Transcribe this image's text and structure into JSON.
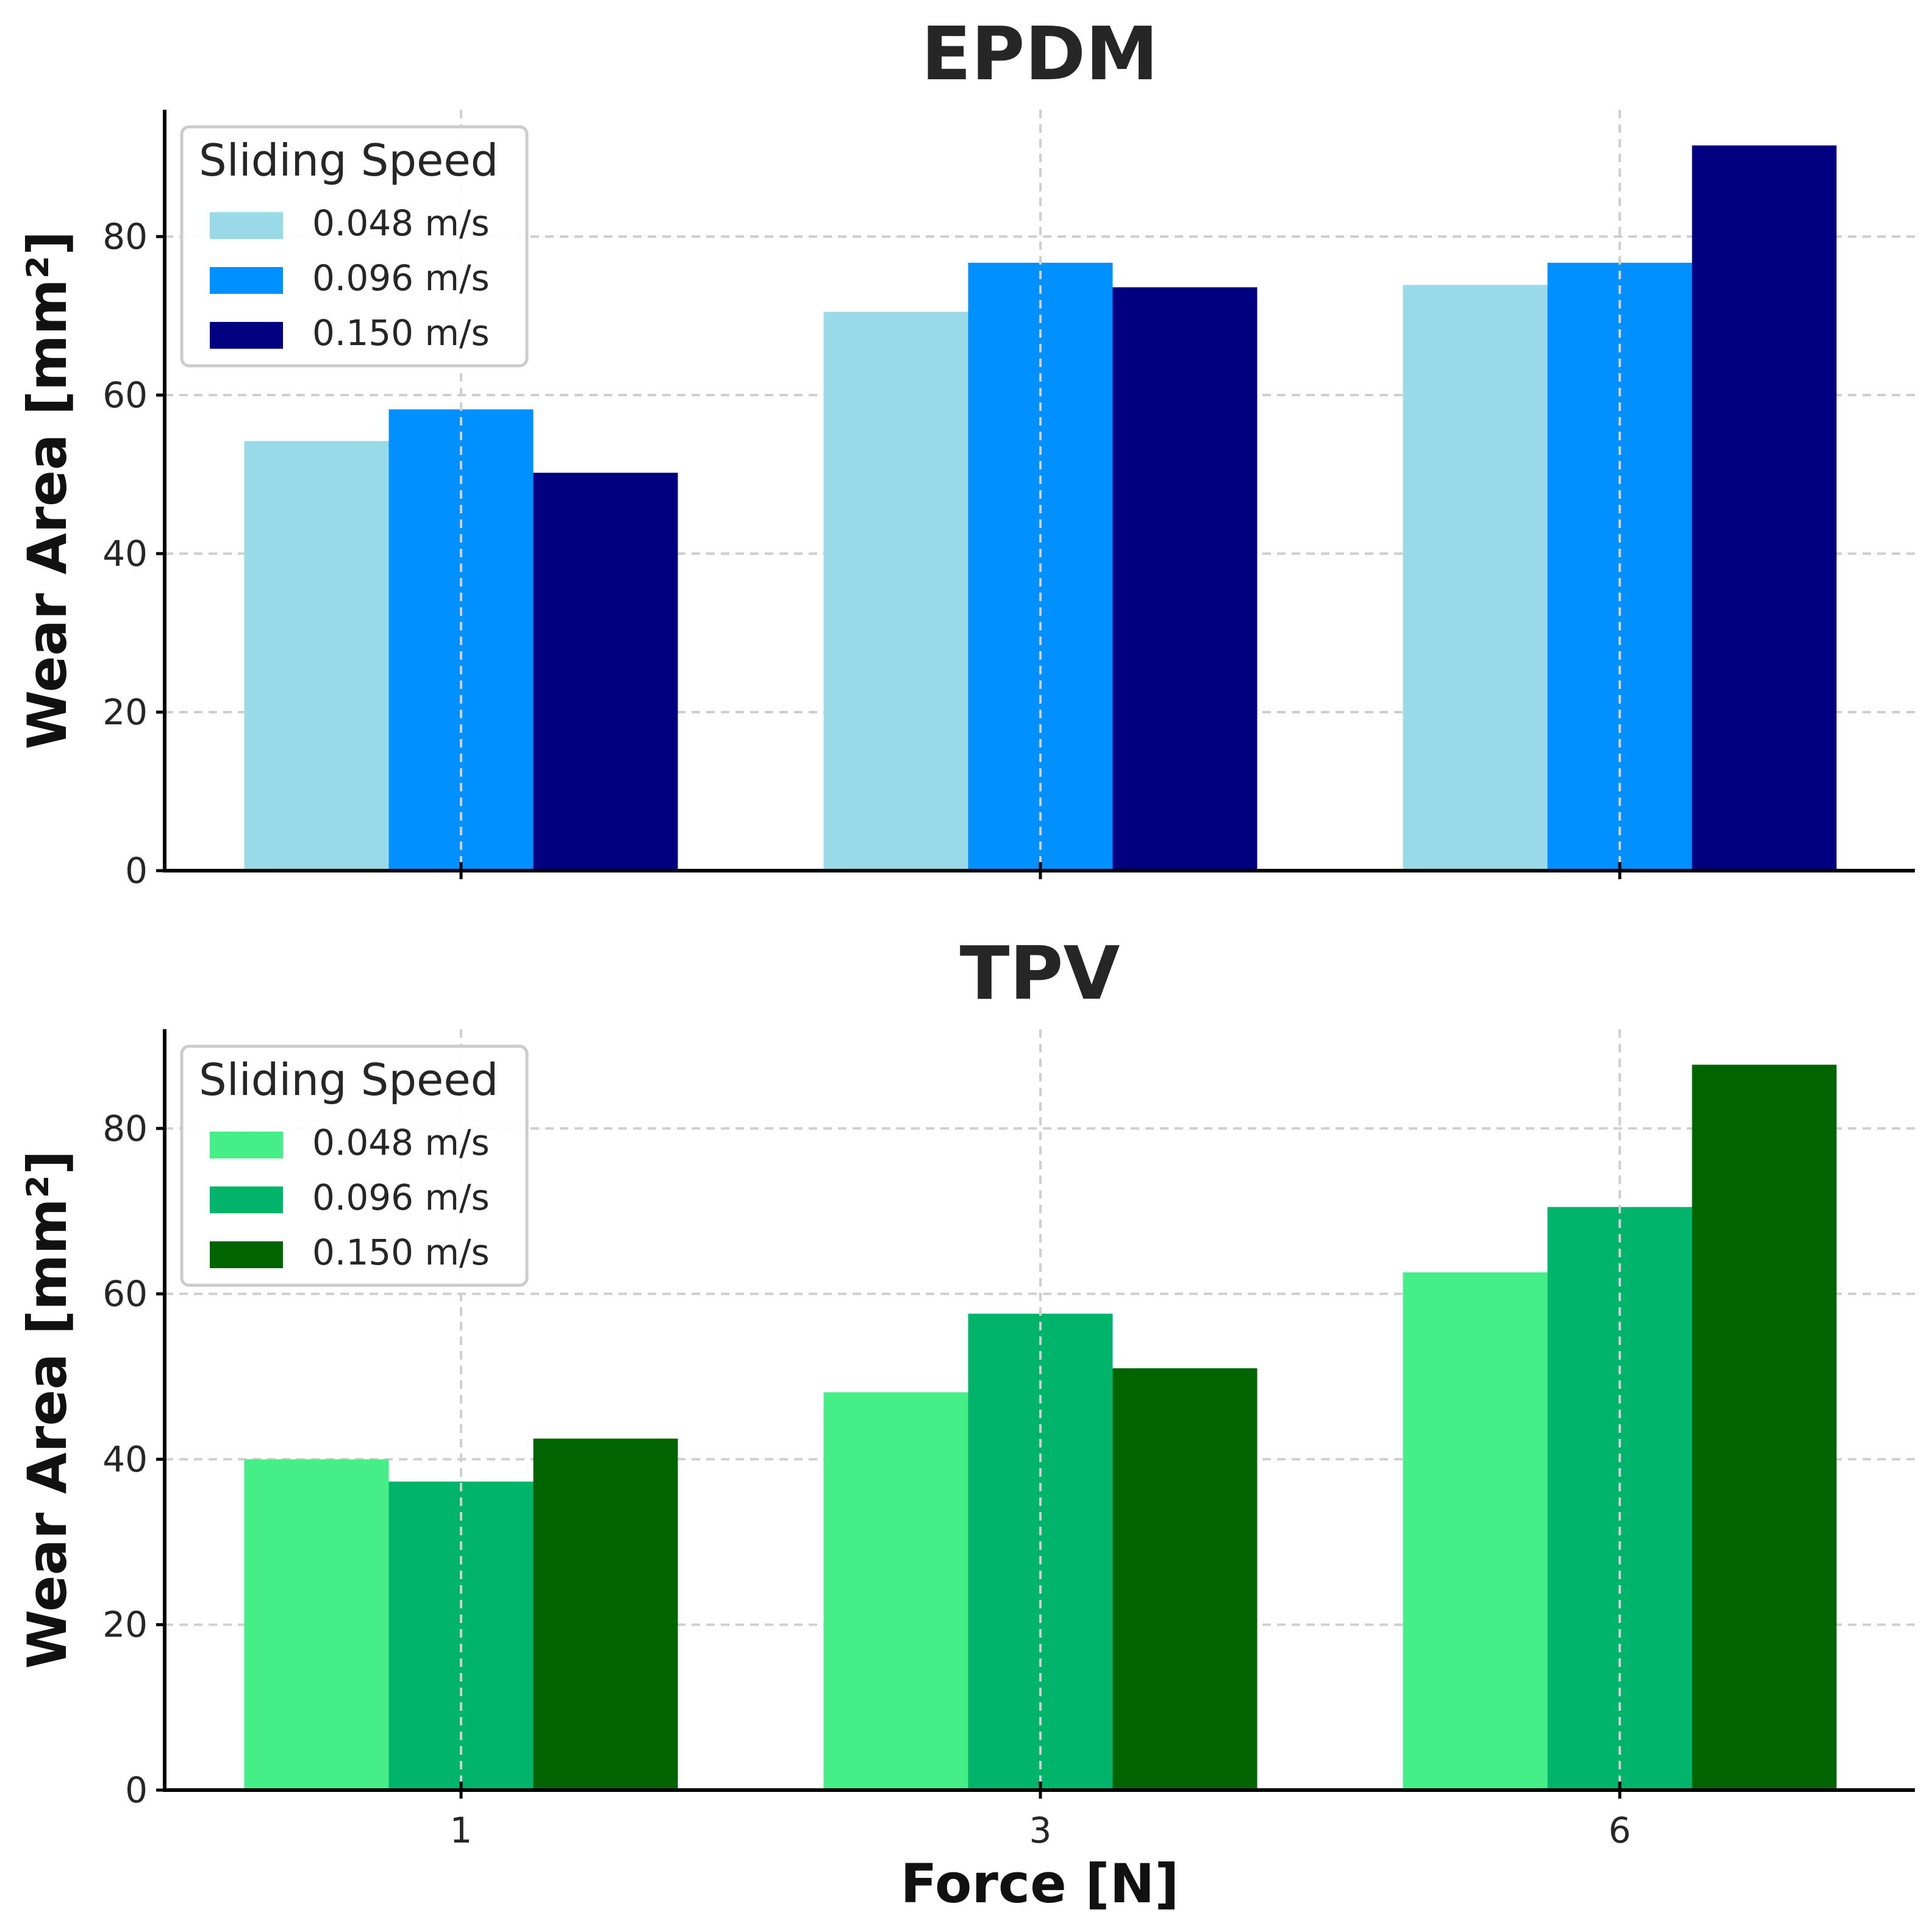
{
  "chart_data": [
    {
      "type": "bar",
      "title": "EPDM",
      "xlabel": "",
      "ylabel": "Wear Area [mm²]",
      "categories": [
        "1",
        "3",
        "6"
      ],
      "yticks": [
        "0",
        "20",
        "40",
        "60",
        "80"
      ],
      "ylim": [
        0,
        96
      ],
      "grid": true,
      "legend": {
        "title": "Sliding Speed",
        "placement": "top-left"
      },
      "series": [
        {
          "name": "0.048 m/s",
          "color": "#99d9e8",
          "values": [
            54.2,
            70.5,
            73.9
          ]
        },
        {
          "name": "0.096 m/s",
          "color": "#0090ff",
          "values": [
            58.2,
            76.7,
            76.7
          ]
        },
        {
          "name": "0.150 m/s",
          "color": "#000080",
          "values": [
            50.2,
            73.6,
            91.5
          ]
        }
      ]
    },
    {
      "type": "bar",
      "title": "TPV",
      "xlabel": "Force [N]",
      "ylabel": "Wear Area [mm²]",
      "categories": [
        "1",
        "3",
        "6"
      ],
      "yticks": [
        "0",
        "20",
        "40",
        "60",
        "80"
      ],
      "ylim": [
        0,
        92
      ],
      "grid": true,
      "legend": {
        "title": "Sliding Speed",
        "placement": "top-left"
      },
      "series": [
        {
          "name": "0.048 m/s",
          "color": "#46ee88",
          "values": [
            40.0,
            48.1,
            62.6
          ]
        },
        {
          "name": "0.096 m/s",
          "color": "#00b46b",
          "values": [
            37.3,
            57.6,
            70.5
          ]
        },
        {
          "name": "0.150 m/s",
          "color": "#006400",
          "values": [
            42.5,
            51.0,
            87.7
          ]
        }
      ]
    }
  ]
}
